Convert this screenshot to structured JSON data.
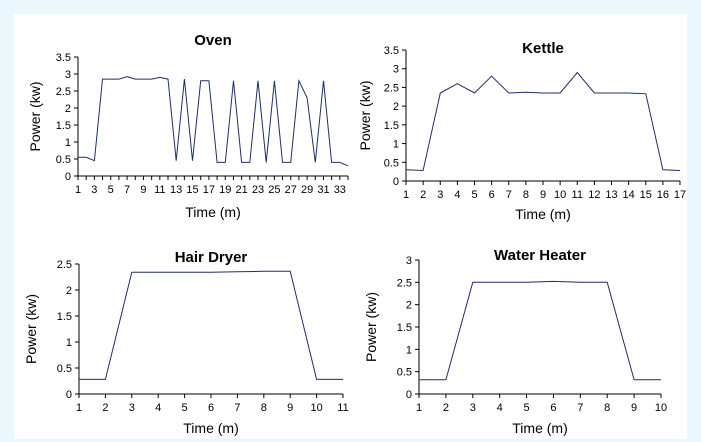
{
  "chart_data": [
    {
      "type": "line",
      "title": "Oven",
      "xlabel": "Time (m)",
      "ylabel": "Power (kw)",
      "ylim": [
        0,
        3.5
      ],
      "yticks": [
        "0",
        "0.5",
        "1",
        "1.5",
        "2",
        "2.5",
        "3",
        "3.5"
      ],
      "xtick_labels": [
        "1",
        "3",
        "5",
        "7",
        "9",
        "11",
        "13",
        "15",
        "17",
        "19",
        "21",
        "23",
        "25",
        "27",
        "29",
        "31",
        "33"
      ],
      "x": [
        1,
        2,
        3,
        4,
        5,
        6,
        7,
        8,
        9,
        10,
        11,
        12,
        13,
        14,
        15,
        16,
        17,
        18,
        19,
        20,
        21,
        22,
        23,
        24,
        25,
        26,
        27,
        28,
        29,
        30,
        31,
        32,
        33,
        34
      ],
      "values": [
        0.55,
        0.55,
        0.45,
        2.85,
        2.85,
        2.85,
        2.92,
        2.85,
        2.85,
        2.85,
        2.9,
        2.85,
        0.45,
        2.85,
        0.45,
        2.8,
        2.8,
        0.4,
        0.4,
        2.8,
        0.4,
        0.4,
        2.8,
        0.4,
        2.8,
        0.4,
        0.4,
        2.8,
        2.3,
        0.4,
        2.8,
        0.4,
        0.4,
        0.3
      ]
    },
    {
      "type": "line",
      "title": "Kettle",
      "xlabel": "Time (m)",
      "ylabel": "Power (kw)",
      "ylim": [
        0,
        3.5
      ],
      "yticks": [
        "0",
        "0.5",
        "1",
        "1.5",
        "2",
        "2.5",
        "3",
        "3.5"
      ],
      "xtick_labels": [
        "1",
        "2",
        "3",
        "4",
        "5",
        "6",
        "7",
        "8",
        "9",
        "10",
        "11",
        "12",
        "13",
        "14",
        "15",
        "16",
        "17"
      ],
      "x": [
        1,
        2,
        3,
        4,
        5,
        6,
        7,
        8,
        9,
        10,
        11,
        12,
        13,
        14,
        15,
        16,
        17
      ],
      "values": [
        0.3,
        0.28,
        2.35,
        2.6,
        2.35,
        2.8,
        2.35,
        2.37,
        2.35,
        2.35,
        2.9,
        2.35,
        2.35,
        2.35,
        2.33,
        0.3,
        0.28
      ]
    },
    {
      "type": "line",
      "title": "Hair Dryer",
      "xlabel": "Time (m)",
      "ylabel": "Power (kw)",
      "ylim": [
        0,
        2.5
      ],
      "yticks": [
        "0",
        "0.5",
        "1",
        "1.5",
        "2",
        "2.5"
      ],
      "xtick_labels": [
        "1",
        "2",
        "3",
        "4",
        "5",
        "6",
        "7",
        "8",
        "9",
        "10",
        "11"
      ],
      "x": [
        1,
        2,
        3,
        4,
        5,
        6,
        7,
        8,
        9,
        10,
        11
      ],
      "values": [
        0.28,
        0.28,
        2.34,
        2.34,
        2.34,
        2.34,
        2.35,
        2.36,
        2.36,
        0.28,
        0.28
      ]
    },
    {
      "type": "line",
      "title": "Water Heater",
      "xlabel": "Time (m)",
      "ylabel": "Power (kw)",
      "ylim": [
        0,
        3
      ],
      "yticks": [
        "0",
        "0.5",
        "1",
        "1.5",
        "2",
        "2.5",
        "3"
      ],
      "xtick_labels": [
        "1",
        "2",
        "3",
        "4",
        "5",
        "6",
        "7",
        "8",
        "9",
        "10"
      ],
      "x": [
        1,
        2,
        3,
        4,
        5,
        6,
        7,
        8,
        9,
        10
      ],
      "values": [
        0.32,
        0.32,
        2.5,
        2.5,
        2.5,
        2.52,
        2.5,
        2.5,
        0.32,
        0.32
      ]
    }
  ]
}
